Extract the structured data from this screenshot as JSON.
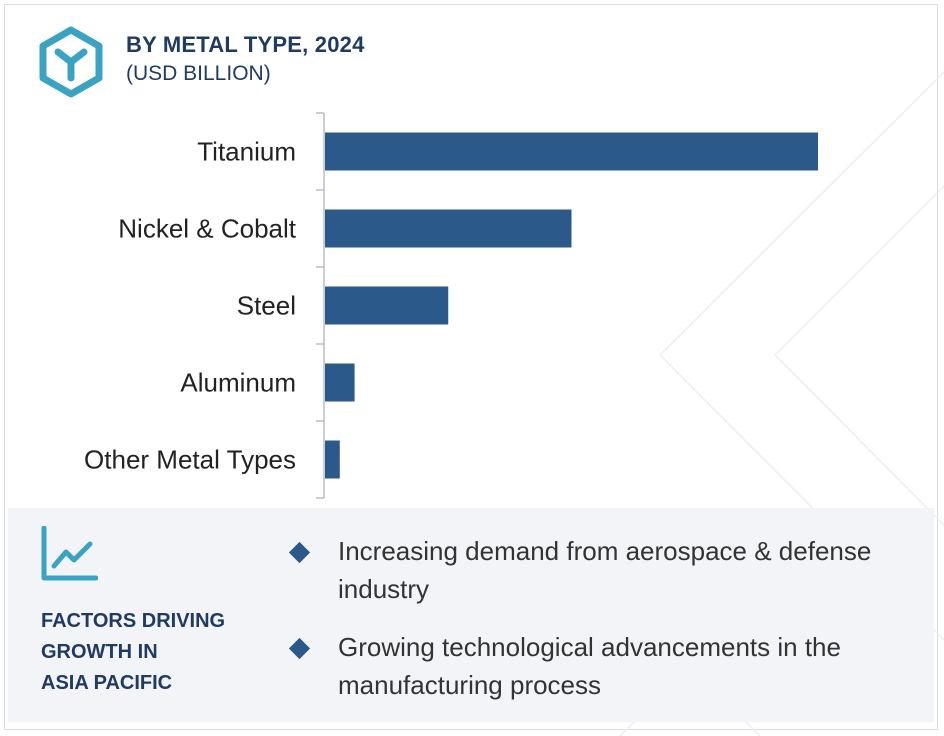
{
  "header": {
    "title": "BY METAL TYPE, 2024",
    "subtitle": "(USD BILLION)",
    "icon": "cube-y-icon"
  },
  "colors": {
    "bar": "#2b5a8a",
    "title": "#1f3a63",
    "icon_accent": "#3aa3c4",
    "panel_bg": "#f3f4f8"
  },
  "chart_data": {
    "type": "bar",
    "orientation": "horizontal",
    "categories": [
      "Titanium",
      "Nickel & Cobalt",
      "Steel",
      "Aluminum",
      "Other Metal Types"
    ],
    "values": [
      100,
      50,
      25,
      6,
      3
    ],
    "title": "BY METAL TYPE, 2024",
    "xlabel": "",
    "ylabel": "",
    "xlim": [
      0,
      100
    ],
    "value_labels_shown": false,
    "grid": false
  },
  "factors": {
    "icon": "trend-chart-icon",
    "title": "FACTORS DRIVING\nGROWTH IN\nASIA PACIFIC",
    "bullets": [
      "Increasing demand from aerospace & defense industry",
      "Growing technological advancements in the manufacturing process"
    ]
  }
}
